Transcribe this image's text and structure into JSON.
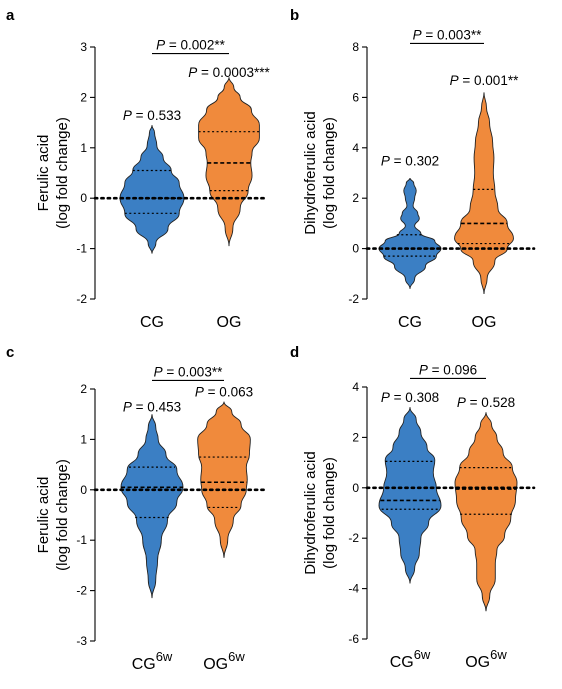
{
  "colors": {
    "CG": "#3b7fc4",
    "OG": "#f08a3c",
    "outline": "#222222"
  },
  "chart_data": [
    {
      "panel": "a",
      "type": "violin",
      "ylabel": [
        "Ferulic acid",
        "(log fold change)"
      ],
      "ylim": [
        -2,
        3
      ],
      "yticks": [
        -2,
        -1,
        0,
        1,
        2,
        3
      ],
      "categories": [
        {
          "base": "CG",
          "sup": ""
        },
        {
          "base": "OG",
          "sup": ""
        }
      ],
      "reference_line": 0,
      "annotations": [
        {
          "target": 0,
          "italic": "P",
          "rest": " = 0.533",
          "y": 1.55
        },
        {
          "target": 1,
          "italic": "P",
          "rest": " = 0.0003***",
          "y": 2.4
        }
      ],
      "bracket": {
        "italic": "P",
        "rest": " = 0.002**",
        "y": 2.95
      },
      "series": [
        {
          "color_key": "CG",
          "ymin": -1.1,
          "ymax": 1.45,
          "median": 0.0,
          "q1": -0.3,
          "q3": 0.55,
          "profile": [
            [
              -1.1,
              0
            ],
            [
              -0.9,
              0.12
            ],
            [
              -0.6,
              0.5
            ],
            [
              -0.3,
              0.85
            ],
            [
              0,
              1.0
            ],
            [
              0.3,
              0.85
            ],
            [
              0.55,
              0.6
            ],
            [
              0.8,
              0.35
            ],
            [
              1.05,
              0.15
            ],
            [
              1.3,
              0.08
            ],
            [
              1.45,
              0
            ]
          ]
        },
        {
          "color_key": "OG",
          "ymin": -0.95,
          "ymax": 2.4,
          "median": 0.7,
          "q1": 0.15,
          "q3": 1.32,
          "profile": [
            [
              -0.95,
              0
            ],
            [
              -0.6,
              0.12
            ],
            [
              -0.2,
              0.35
            ],
            [
              0.15,
              0.6
            ],
            [
              0.45,
              0.72
            ],
            [
              0.7,
              0.68
            ],
            [
              0.9,
              0.72
            ],
            [
              1.2,
              0.95
            ],
            [
              1.45,
              0.95
            ],
            [
              1.75,
              0.7
            ],
            [
              2.0,
              0.35
            ],
            [
              2.2,
              0.15
            ],
            [
              2.4,
              0
            ]
          ]
        }
      ]
    },
    {
      "panel": "b",
      "type": "violin",
      "ylabel": [
        "Dihydroferulic acid",
        "(log fold change)"
      ],
      "ylim": [
        -2,
        8
      ],
      "yticks": [
        -2,
        0,
        2,
        4,
        6,
        8
      ],
      "categories": [
        {
          "base": "CG",
          "sup": ""
        },
        {
          "base": "OG",
          "sup": ""
        }
      ],
      "reference_line": 0,
      "annotations": [
        {
          "target": 0,
          "italic": "P",
          "rest": " = 0.302",
          "y": 3.3
        },
        {
          "target": 1,
          "italic": "P",
          "rest": " = 0.001**",
          "y": 6.5
        }
      ],
      "bracket": {
        "italic": "P",
        "rest": " = 0.003**",
        "y": 8.3
      },
      "series": [
        {
          "color_key": "CG",
          "ymin": -1.6,
          "ymax": 2.8,
          "median": 0.0,
          "q1": -0.3,
          "q3": 0.55,
          "profile": [
            [
              -1.6,
              0
            ],
            [
              -1.2,
              0.15
            ],
            [
              -0.7,
              0.5
            ],
            [
              -0.3,
              0.85
            ],
            [
              0,
              1.0
            ],
            [
              0.3,
              0.8
            ],
            [
              0.6,
              0.35
            ],
            [
              0.9,
              0.15
            ],
            [
              1.2,
              0.3
            ],
            [
              1.4,
              0.25
            ],
            [
              1.7,
              0.1
            ],
            [
              2.0,
              0.15
            ],
            [
              2.3,
              0.2
            ],
            [
              2.6,
              0.12
            ],
            [
              2.8,
              0
            ]
          ]
        },
        {
          "color_key": "OG",
          "ymin": -1.8,
          "ymax": 6.2,
          "median": 1.0,
          "q1": 0.2,
          "q3": 2.35,
          "profile": [
            [
              -1.8,
              0
            ],
            [
              -1.2,
              0.1
            ],
            [
              -0.5,
              0.35
            ],
            [
              0,
              0.75
            ],
            [
              0.4,
              0.95
            ],
            [
              1.0,
              0.75
            ],
            [
              1.6,
              0.45
            ],
            [
              2.3,
              0.35
            ],
            [
              3.0,
              0.3
            ],
            [
              3.6,
              0.32
            ],
            [
              4.2,
              0.28
            ],
            [
              5.0,
              0.18
            ],
            [
              5.6,
              0.08
            ],
            [
              6.2,
              0
            ]
          ]
        }
      ]
    },
    {
      "panel": "c",
      "type": "violin",
      "ylabel": [
        "Ferulic acid",
        "(log fold change)"
      ],
      "ylim": [
        -3,
        2
      ],
      "yticks": [
        -3,
        -2,
        -1,
        0,
        1,
        2
      ],
      "categories": [
        {
          "base": "CG",
          "sup": "6w"
        },
        {
          "base": "OG",
          "sup": "6w"
        }
      ],
      "reference_line": 0,
      "annotations": [
        {
          "target": 0,
          "italic": "P",
          "rest": " = 0.453",
          "y": 1.55
        },
        {
          "target": 1,
          "italic": "P",
          "rest": " = 0.063",
          "y": 1.85
        }
      ],
      "bracket": {
        "italic": "P",
        "rest": " = 0.003**",
        "y": 2.25
      },
      "series": [
        {
          "color_key": "CG",
          "ymin": -2.15,
          "ymax": 1.5,
          "median": 0.05,
          "q1": -0.55,
          "q3": 0.45,
          "profile": [
            [
              -2.15,
              0
            ],
            [
              -1.8,
              0.12
            ],
            [
              -1.4,
              0.18
            ],
            [
              -1.0,
              0.3
            ],
            [
              -0.6,
              0.5
            ],
            [
              -0.25,
              0.8
            ],
            [
              0.05,
              1.0
            ],
            [
              0.4,
              0.8
            ],
            [
              0.7,
              0.45
            ],
            [
              1.0,
              0.2
            ],
            [
              1.25,
              0.12
            ],
            [
              1.5,
              0
            ]
          ]
        },
        {
          "color_key": "OG",
          "ymin": -1.35,
          "ymax": 1.75,
          "median": 0.15,
          "q1": -0.35,
          "q3": 0.65,
          "profile": [
            [
              -1.35,
              0
            ],
            [
              -1.0,
              0.12
            ],
            [
              -0.6,
              0.3
            ],
            [
              -0.3,
              0.55
            ],
            [
              0,
              0.72
            ],
            [
              0.2,
              0.75
            ],
            [
              0.45,
              0.72
            ],
            [
              0.7,
              0.82
            ],
            [
              1.0,
              0.85
            ],
            [
              1.3,
              0.55
            ],
            [
              1.55,
              0.25
            ],
            [
              1.75,
              0
            ]
          ]
        }
      ]
    },
    {
      "panel": "d",
      "type": "violin",
      "ylabel": [
        "Dihydroferulic acid",
        "(log fold change)"
      ],
      "ylim": [
        -6,
        4
      ],
      "yticks": [
        -6,
        -4,
        -2,
        0,
        2,
        4
      ],
      "categories": [
        {
          "base": "CG",
          "sup": "6w"
        },
        {
          "base": "OG",
          "sup": "6w"
        }
      ],
      "reference_line": 0,
      "annotations": [
        {
          "target": 0,
          "italic": "P",
          "rest": " = 0.308",
          "y": 3.4
        },
        {
          "target": 1,
          "italic": "P",
          "rest": " = 0.528",
          "y": 3.2
        }
      ],
      "bracket": {
        "italic": "P",
        "rest": " = 0.096",
        "y": 4.5
      },
      "series": [
        {
          "color_key": "CG",
          "ymin": -3.8,
          "ymax": 3.2,
          "median": -0.5,
          "q1": -0.85,
          "q3": 1.05,
          "profile": [
            [
              -3.8,
              0
            ],
            [
              -3.2,
              0.15
            ],
            [
              -2.6,
              0.3
            ],
            [
              -2.0,
              0.35
            ],
            [
              -1.4,
              0.6
            ],
            [
              -0.7,
              1.0
            ],
            [
              0,
              0.85
            ],
            [
              0.6,
              0.75
            ],
            [
              1.1,
              0.8
            ],
            [
              1.6,
              0.55
            ],
            [
              2.2,
              0.35
            ],
            [
              2.7,
              0.2
            ],
            [
              3.2,
              0
            ]
          ]
        },
        {
          "color_key": "OG",
          "ymin": -4.9,
          "ymax": 3.0,
          "median": -0.05,
          "q1": -1.05,
          "q3": 0.8,
          "profile": [
            [
              -4.9,
              0
            ],
            [
              -4.3,
              0.12
            ],
            [
              -3.6,
              0.3
            ],
            [
              -3.0,
              0.3
            ],
            [
              -2.5,
              0.35
            ],
            [
              -1.9,
              0.6
            ],
            [
              -1.2,
              0.8
            ],
            [
              -0.5,
              0.95
            ],
            [
              0.2,
              1.0
            ],
            [
              0.8,
              0.85
            ],
            [
              1.4,
              0.55
            ],
            [
              2.0,
              0.35
            ],
            [
              2.5,
              0.18
            ],
            [
              3.0,
              0
            ]
          ]
        }
      ]
    }
  ]
}
